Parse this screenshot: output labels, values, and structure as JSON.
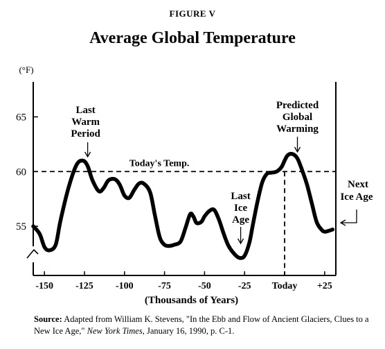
{
  "figure_label": "FIGURE V",
  "chart_data": {
    "type": "line",
    "title": "Average Global Temperature",
    "ylabel": "(°F)",
    "xlabel": "(Thousands of Years)",
    "xlim": [
      -157,
      32
    ],
    "ylim": [
      50.5,
      68.2
    ],
    "y_ticks": [
      55,
      60,
      65
    ],
    "x_ticks": [
      {
        "value": -150,
        "label": "-150"
      },
      {
        "value": -125,
        "label": "-125"
      },
      {
        "value": -100,
        "label": "-100"
      },
      {
        "value": -75,
        "label": "-75"
      },
      {
        "value": -50,
        "label": "-50"
      },
      {
        "value": -25,
        "label": "-25"
      },
      {
        "value": 0,
        "label": "Today"
      },
      {
        "value": 25,
        "label": "+25"
      }
    ],
    "reference_line": {
      "y": 60,
      "label": "Today's Temp."
    },
    "series": [
      {
        "x": [
          -157,
          -153,
          -150,
          -147,
          -143,
          -140,
          -135,
          -130,
          -126,
          -123,
          -120,
          -116,
          -113,
          -110,
          -106,
          -103,
          -100,
          -97,
          -94,
          -91,
          -88,
          -84,
          -81,
          -78,
          -75,
          -72,
          -69,
          -65,
          -62,
          -59,
          -57,
          -55,
          -52,
          -50,
          -47,
          -44,
          -41,
          -38,
          -35,
          -31,
          -28,
          -25,
          -22,
          -20,
          -17,
          -14,
          -11,
          -8,
          -5,
          -2,
          0,
          2,
          5,
          8,
          11,
          14,
          17,
          20,
          23,
          25,
          28,
          30
        ],
        "y": [
          55.0,
          54.3,
          53.1,
          52.8,
          53.3,
          55.5,
          58.5,
          60.6,
          61.0,
          60.5,
          59.2,
          58.2,
          58.5,
          59.2,
          59.3,
          58.8,
          57.8,
          57.6,
          58.3,
          58.9,
          58.9,
          58.1,
          56.0,
          54.0,
          53.3,
          53.2,
          53.3,
          53.6,
          54.8,
          56.1,
          55.9,
          55.3,
          55.4,
          55.9,
          56.4,
          56.5,
          55.6,
          54.3,
          53.2,
          52.4,
          52.1,
          52.3,
          53.5,
          55.0,
          57.2,
          59.0,
          59.8,
          59.9,
          60.0,
          60.4,
          61.0,
          61.5,
          61.6,
          61.2,
          60.1,
          58.8,
          57.1,
          55.4,
          54.7,
          54.5,
          54.6,
          54.7
        ]
      }
    ],
    "annotations": [
      {
        "lines": [
          "Last",
          "Warm",
          "Period"
        ],
        "x": -123,
        "y": 61.0
      },
      {
        "lines": [
          "Last",
          "Ice",
          "Age"
        ],
        "x": -27,
        "y": 52.1
      },
      {
        "lines": [
          "Predicted",
          "Global",
          "Warming"
        ],
        "x": 8,
        "y": 61.7
      },
      {
        "lines": [
          "Next",
          "Ice Age"
        ],
        "x": 30,
        "y": 54.7
      }
    ],
    "today_marker_x": 0,
    "y_axis_break": true,
    "grid": false
  },
  "source": {
    "label": "Source:",
    "text_before": "Adapted from William K. Stevens, \"In the Ebb and Flow of Ancient Glaciers, Clues to a New Ice Age,\" ",
    "publication": "New York Times",
    "text_after": ", January 16, 1990, p. C-1."
  }
}
